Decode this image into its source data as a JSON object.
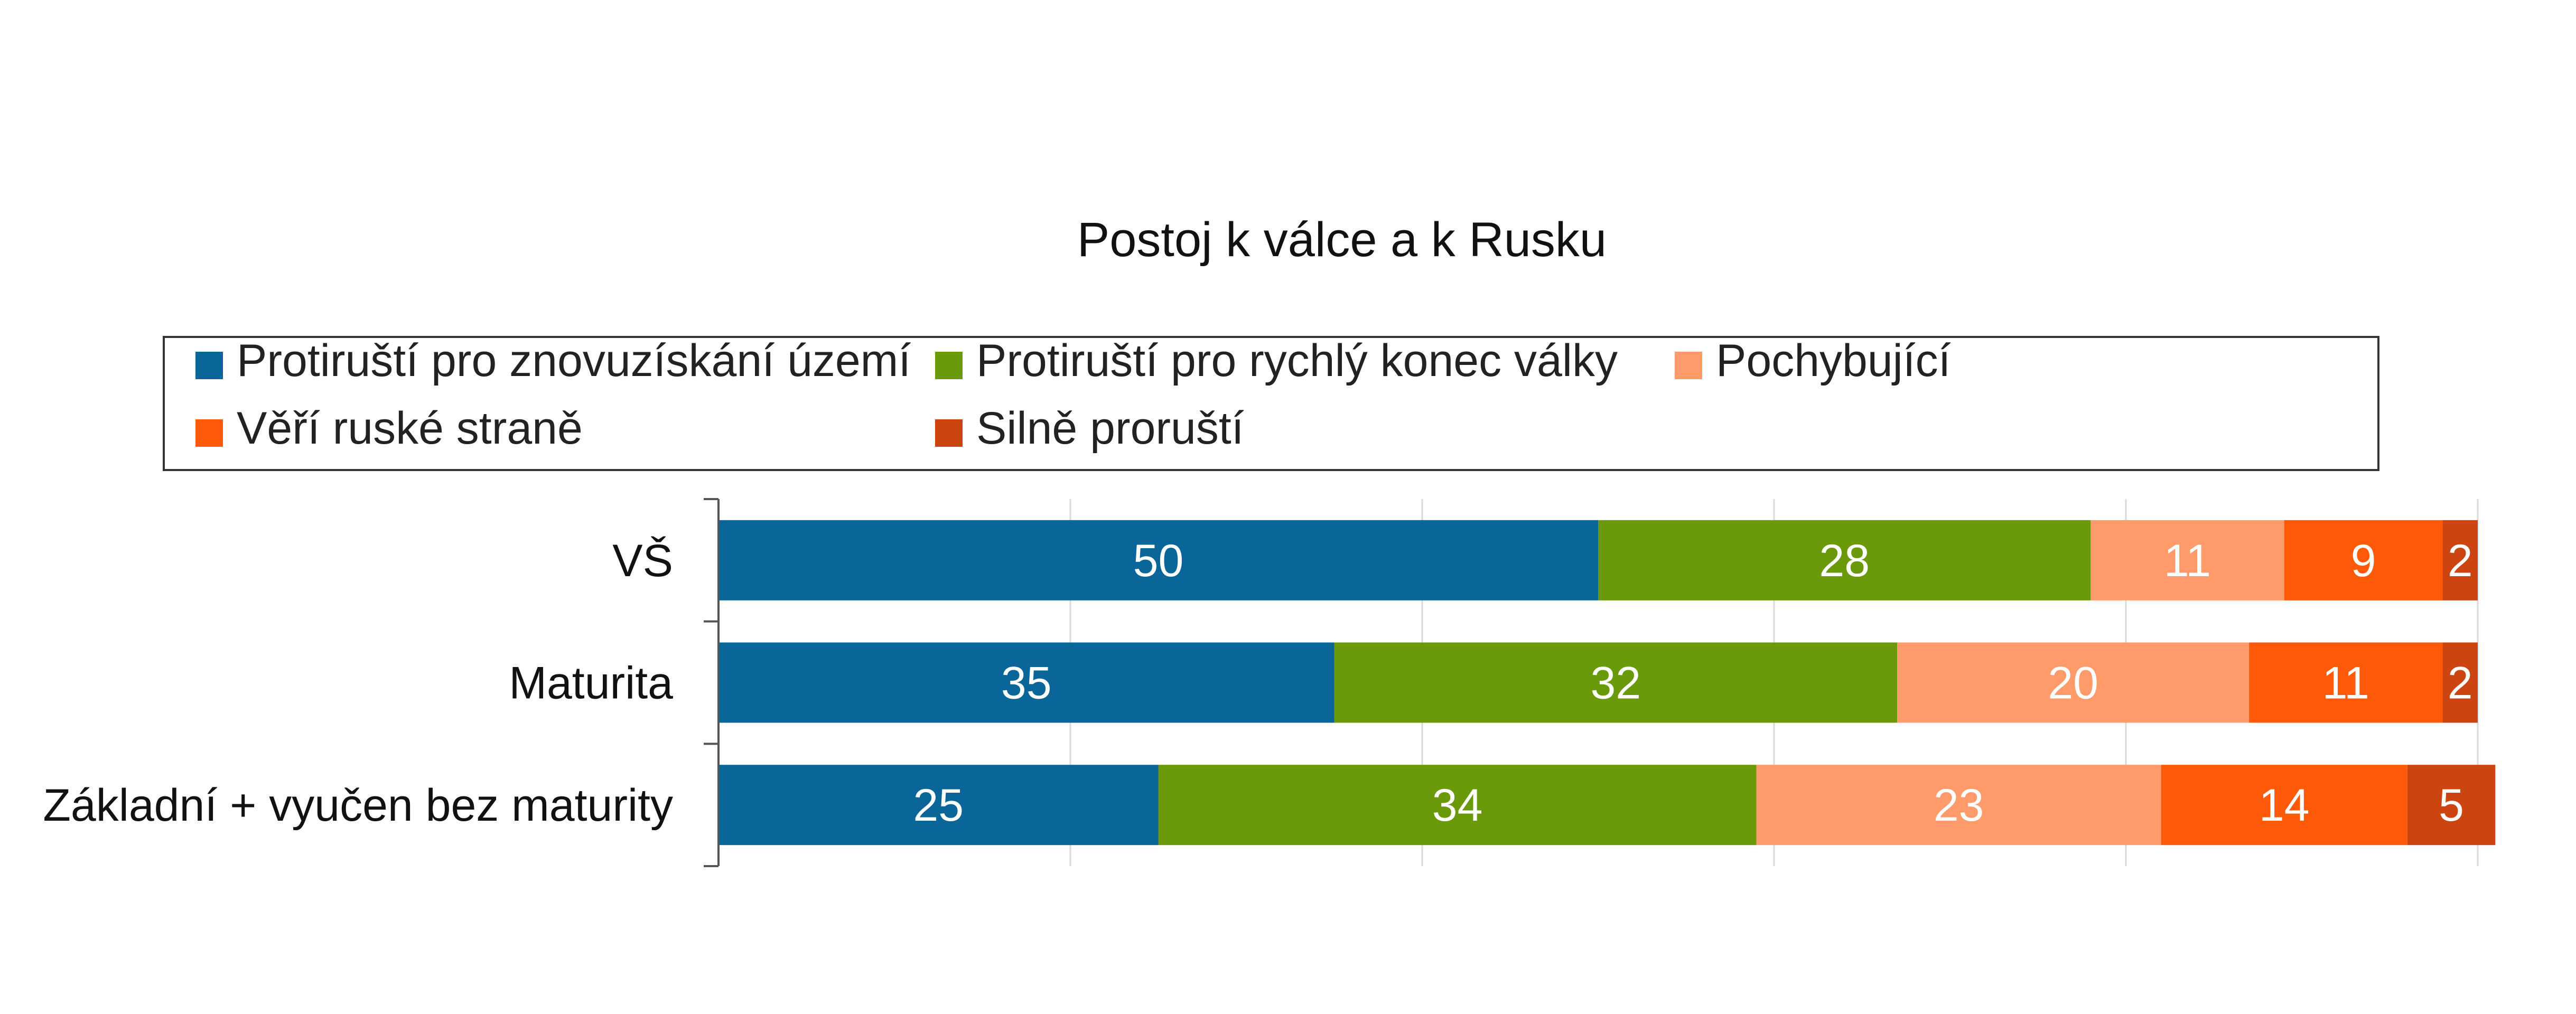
{
  "chart_data": {
    "type": "bar",
    "orientation": "horizontal",
    "stacked": true,
    "title": "Postoj k válce a k Rusku",
    "legend_position": "top",
    "xlim": [
      0,
      100
    ],
    "grid": true,
    "categories": [
      "VŠ",
      "Maturita",
      "Základní + vyučen bez maturity"
    ],
    "series": [
      {
        "name": "Protiruští pro znovuzískání území",
        "color": "#0A6699",
        "values": [
          50,
          35,
          25
        ]
      },
      {
        "name": "Protiruští pro rychlý konec války",
        "color": "#6A9A0A",
        "values": [
          28,
          32,
          34
        ]
      },
      {
        "name": "Pochybující",
        "color": "#FF9A6A",
        "values": [
          11,
          20,
          23
        ]
      },
      {
        "name": "Věří ruské straně",
        "color": "#FF5A0A",
        "values": [
          9,
          11,
          14
        ]
      },
      {
        "name": "Silně proruští",
        "color": "#CC4410",
        "values": [
          2,
          2,
          5
        ]
      }
    ],
    "data_labels": [
      [
        "50",
        "28",
        "11",
        "9",
        "2"
      ],
      [
        "35",
        "32",
        "20",
        "11",
        "2"
      ],
      [
        "25",
        "34",
        "23",
        "14",
        "5"
      ]
    ]
  }
}
